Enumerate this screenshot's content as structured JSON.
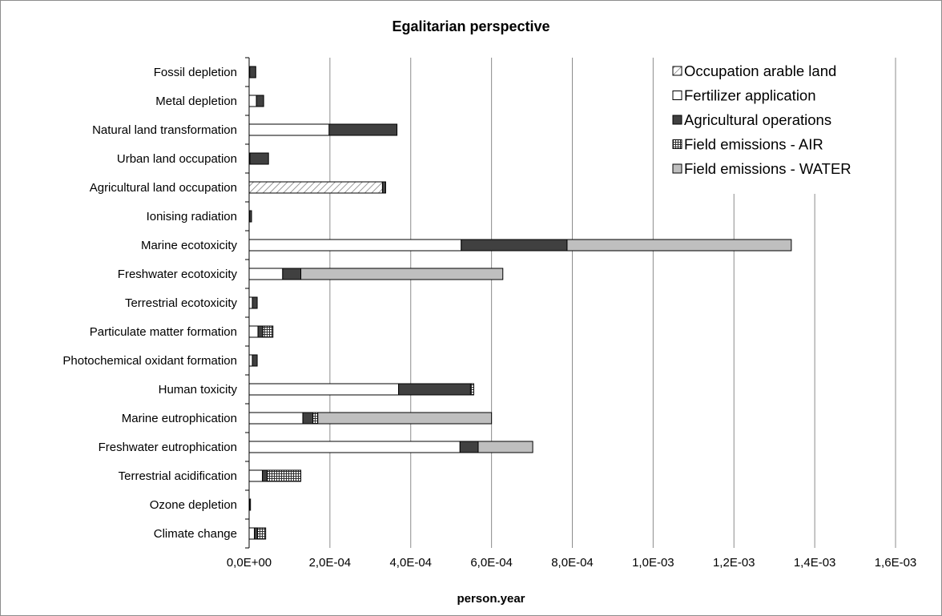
{
  "chart_data": {
    "type": "bar",
    "orientation": "horizontal",
    "stacked": true,
    "title": "Egalitarian perspective",
    "xlabel": "person.year",
    "ylabel": "",
    "xlim": [
      0,
      0.0016
    ],
    "x_ticks": [
      0,
      0.0002,
      0.0004,
      0.0006,
      0.0008,
      0.001,
      0.0012,
      0.0014,
      0.0016
    ],
    "x_tick_labels": [
      "0,0E+00",
      "2,0E-04",
      "4,0E-04",
      "6,0E-04",
      "8,0E-04",
      "1,0E-03",
      "1,2E-03",
      "1,4E-03",
      "1,6E-03"
    ],
    "grid": "vertical gridlines on",
    "legend_position": "top-right",
    "categories": [
      "Fossil depletion",
      "Metal depletion",
      "Natural land transformation",
      "Urban land occupation",
      "Agricultural land occupation",
      "Ionising radiation",
      "Marine ecotoxicity",
      "Freshwater ecotoxicity",
      "Terrestrial ecotoxicity",
      "Particulate matter formation",
      "Photochemical oxidant formation",
      "Human toxicity",
      "Marine eutrophication",
      "Freshwater eutrophication",
      "Terrestrial acidification",
      "Ozone depletion",
      "Climate change"
    ],
    "series": [
      {
        "name": "Occupation arable land",
        "pattern": "diagonal-hatch",
        "color": "#ffffff",
        "values": [
          0,
          0,
          0,
          0,
          0.00033,
          0,
          0,
          0,
          0,
          0,
          0,
          0,
          0,
          0,
          0,
          0,
          0
        ]
      },
      {
        "name": "Fertilizer application",
        "pattern": "solid",
        "color": "#ffffff",
        "values": [
          1.5e-06,
          1.8e-05,
          0.000198,
          2e-06,
          0,
          1e-06,
          0.000525,
          8.3e-05,
          8e-06,
          2.2e-05,
          8e-06,
          0.00037,
          0.000133,
          0.000522,
          3.3e-05,
          1e-06,
          1.3e-05
        ]
      },
      {
        "name": "Agricultural operations",
        "pattern": "solid",
        "color": "#404040",
        "values": [
          1.5e-05,
          1.8e-05,
          0.000168,
          4.6e-05,
          8e-06,
          5e-06,
          0.000262,
          4.5e-05,
          1.2e-05,
          1.2e-05,
          1.2e-05,
          0.000178,
          2.5e-05,
          4.5e-05,
          1.2e-05,
          1e-06,
          8e-06
        ]
      },
      {
        "name": "Field emissions - AIR",
        "pattern": "grid",
        "color": "#ffffff",
        "values": [
          0,
          0,
          0,
          0,
          0,
          0,
          0,
          0,
          0,
          2.5e-05,
          0,
          8e-06,
          1.2e-05,
          0,
          8.3e-05,
          0,
          2e-05
        ]
      },
      {
        "name": "Field emissions - WATER",
        "pattern": "solid",
        "color": "#bfbfbf",
        "values": [
          0,
          0,
          0,
          0,
          0,
          0,
          0.000555,
          0.0005,
          0,
          0,
          0,
          0,
          0.00043,
          0.000135,
          0,
          0,
          0
        ]
      }
    ]
  }
}
